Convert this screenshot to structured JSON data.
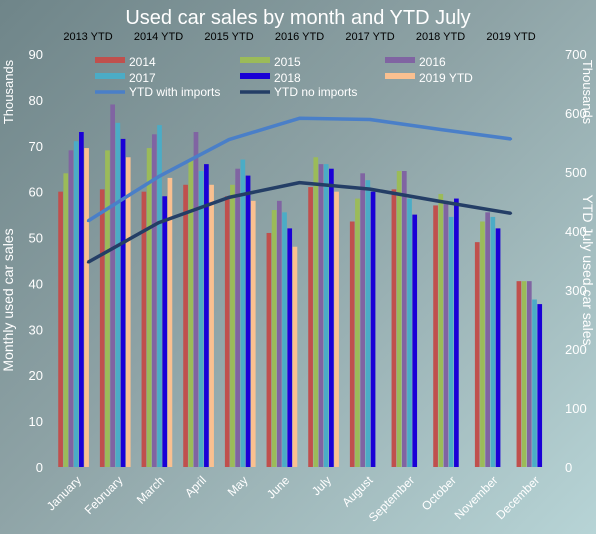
{
  "chart_data": {
    "type": "bar",
    "title": "Used car sales by month and YTD July",
    "categories": [
      "January",
      "February",
      "March",
      "April",
      "May",
      "June",
      "July",
      "August",
      "September",
      "October",
      "November",
      "December"
    ],
    "series": [
      {
        "name": "2014",
        "color": "#c0504d",
        "values": [
          60,
          60.5,
          60,
          61.5,
          59,
          51,
          61,
          53.5,
          60.5,
          57,
          49,
          40.5
        ]
      },
      {
        "name": "2015",
        "color": "#9bbb59",
        "values": [
          64,
          69,
          69.5,
          67,
          61.5,
          56,
          67.5,
          58.5,
          64.5,
          59.5,
          53.5,
          40.5
        ]
      },
      {
        "name": "2016",
        "color": "#8064a2",
        "values": [
          69,
          79,
          72.5,
          73,
          65,
          58,
          66,
          64,
          64.5,
          58,
          55.5,
          40.5
        ]
      },
      {
        "name": "2017",
        "color": "#4bacc6",
        "values": [
          71,
          75,
          74.5,
          64.5,
          67,
          55.5,
          66,
          62.5,
          58.5,
          54.5,
          54.5,
          36.5
        ]
      },
      {
        "name": "2018",
        "color": "#1a00d6",
        "values": [
          73,
          71.5,
          59,
          66,
          63.5,
          52,
          65,
          60,
          55,
          58.5,
          52,
          35.5
        ]
      },
      {
        "name": "2019 YTD",
        "color": "#fac090",
        "values": [
          69.5,
          67.5,
          63,
          61.5,
          58,
          48,
          60,
          null,
          null,
          null,
          null,
          null
        ]
      }
    ],
    "lines": [
      {
        "name": "YTD with imports",
        "color": "#4a7fc8",
        "x": [
          "2013 YTD",
          "2014 YTD",
          "2015 YTD",
          "2016 YTD",
          "2017 YTD",
          "2018 YTD",
          "2019 YTD"
        ],
        "values": [
          417,
          492,
          555,
          591,
          589,
          572,
          556
        ]
      },
      {
        "name": "YTD no imports",
        "color": "#243e66",
        "x": [
          "2013 YTD",
          "2014 YTD",
          "2015 YTD",
          "2016 YTD",
          "2017 YTD",
          "2018 YTD",
          "2019 YTD"
        ],
        "values": [
          347,
          414,
          457,
          482,
          471,
          450,
          430
        ]
      }
    ],
    "top_axis_labels": [
      "2013 YTD",
      "2014 YTD",
      "2015 YTD",
      "2016 YTD",
      "2017 YTD",
      "2018 YTD",
      "2019 YTD"
    ],
    "y_left": {
      "label": "Monthly used car sales",
      "units": "Thousands",
      "lim": [
        0,
        90
      ],
      "ticks": [
        0,
        10,
        20,
        30,
        40,
        50,
        60,
        70,
        80,
        90
      ]
    },
    "y_right": {
      "label": "YTD July used car sales",
      "units": "Thousands",
      "lim": [
        0,
        700
      ],
      "ticks": [
        0,
        100,
        200,
        300,
        400,
        500,
        600,
        700
      ]
    },
    "grid": false,
    "legend_position": "top"
  }
}
